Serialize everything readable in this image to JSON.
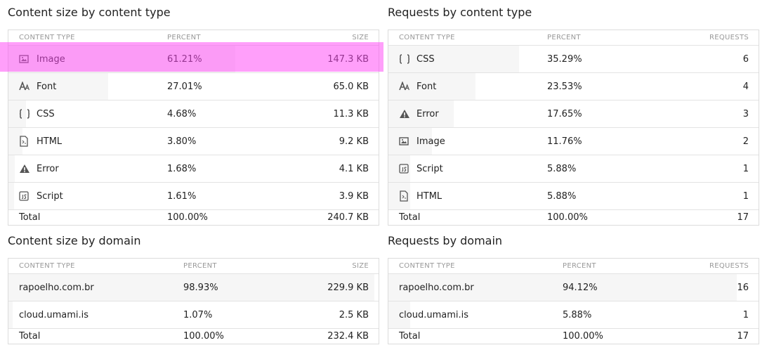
{
  "sections": [
    {
      "title": "Content size by content type",
      "columns": [
        "CONTENT TYPE",
        "PERCENT",
        "SIZE"
      ],
      "rows": [
        [
          "Image",
          "61.21%",
          "147.3 KB"
        ],
        [
          "Font",
          "27.01%",
          "65.0 KB"
        ],
        [
          "CSS",
          "4.68%",
          "11.3 KB"
        ],
        [
          "HTML",
          "3.80%",
          "9.2 KB"
        ],
        [
          "Error",
          "1.68%",
          "4.1 KB"
        ],
        [
          "Script",
          "1.61%",
          "3.9 KB"
        ]
      ],
      "total": [
        "Total",
        "100.00%",
        "240.7 KB"
      ]
    },
    {
      "title": "Requests by content type",
      "columns": [
        "CONTENT TYPE",
        "PERCENT",
        "REQUESTS"
      ],
      "rows": [
        [
          "CSS",
          "35.29%",
          "6"
        ],
        [
          "Font",
          "23.53%",
          "4"
        ],
        [
          "Error",
          "17.65%",
          "3"
        ],
        [
          "Image",
          "11.76%",
          "2"
        ],
        [
          "Script",
          "5.88%",
          "1"
        ],
        [
          "HTML",
          "5.88%",
          "1"
        ]
      ],
      "total": [
        "Total",
        "100.00%",
        "17"
      ]
    },
    {
      "title": "Content size by domain",
      "columns": [
        "CONTENT TYPE",
        "PERCENT",
        "SIZE"
      ],
      "rows": [
        [
          "rapoelho.com.br",
          "98.93%",
          "229.9 KB"
        ],
        [
          "cloud.umami.is",
          "1.07%",
          "2.5 KB"
        ]
      ],
      "total": [
        "Total",
        "100.00%",
        "232.4 KB"
      ]
    },
    {
      "title": "Requests by domain",
      "columns": [
        "CONTENT TYPE",
        "PERCENT",
        "REQUESTS"
      ],
      "rows": [
        [
          "rapoelho.com.br",
          "94.12%",
          "16"
        ],
        [
          "cloud.umami.is",
          "5.88%",
          "1"
        ]
      ],
      "total": [
        "Total",
        "100.00%",
        "17"
      ]
    }
  ]
}
